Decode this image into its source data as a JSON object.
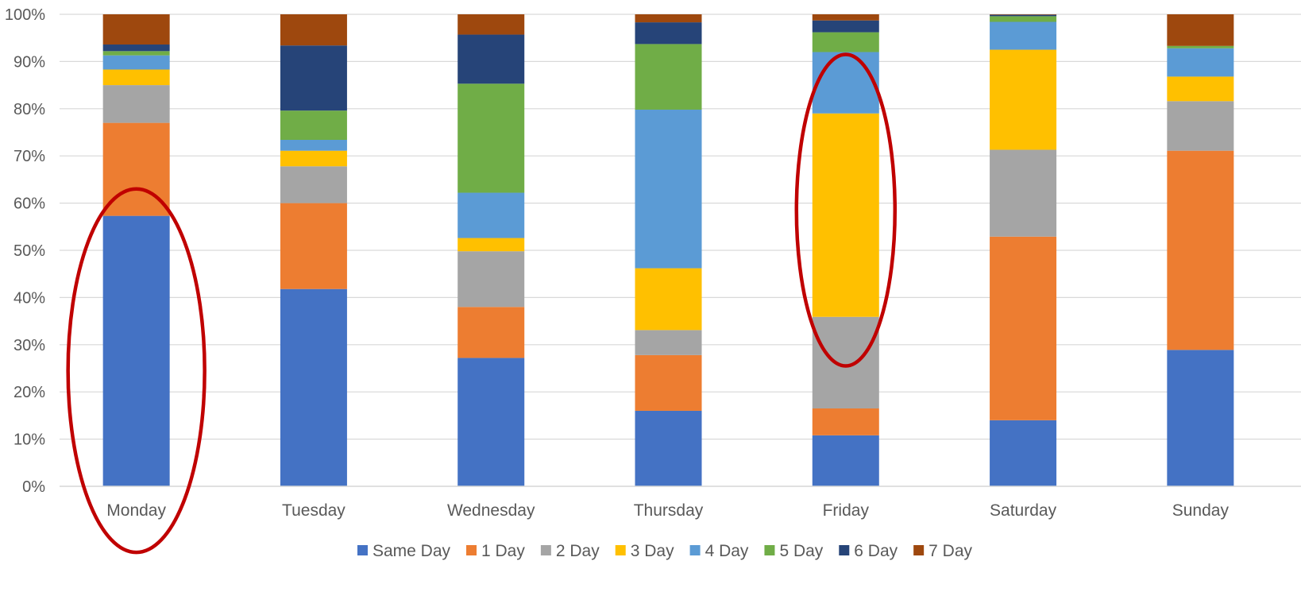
{
  "chart_data": {
    "type": "bar",
    "stacked": true,
    "normalized": true,
    "title": "",
    "xlabel": "",
    "ylabel": "",
    "ylim": [
      0,
      100
    ],
    "y_ticks": [
      "0%",
      "10%",
      "20%",
      "30%",
      "40%",
      "50%",
      "60%",
      "70%",
      "80%",
      "90%",
      "100%"
    ],
    "grid": true,
    "legend_position": "bottom",
    "categories": [
      "Monday",
      "Tuesday",
      "Wednesday",
      "Thursday",
      "Friday",
      "Saturday",
      "Sunday"
    ],
    "series": [
      {
        "name": "Same Day",
        "color": "#4472C4",
        "values": [
          57.3,
          41.8,
          27.2,
          16.0,
          10.8,
          14.0,
          28.9
        ]
      },
      {
        "name": "1 Day",
        "color": "#ED7D31",
        "values": [
          19.7,
          18.2,
          10.8,
          11.8,
          5.7,
          38.9,
          42.2
        ]
      },
      {
        "name": "2 Day",
        "color": "#A5A5A5",
        "values": [
          8.0,
          7.8,
          11.8,
          5.3,
          19.4,
          18.4,
          10.5
        ]
      },
      {
        "name": "3 Day",
        "color": "#FFC000",
        "values": [
          3.3,
          3.3,
          2.8,
          13.1,
          43.1,
          21.2,
          5.2
        ]
      },
      {
        "name": "4 Day",
        "color": "#5B9BD5",
        "values": [
          3.0,
          2.3,
          9.6,
          33.6,
          13.0,
          5.9,
          6.0
        ]
      },
      {
        "name": "5 Day",
        "color": "#70AD47",
        "values": [
          0.9,
          6.2,
          23.1,
          13.9,
          4.2,
          1.2,
          0.5
        ]
      },
      {
        "name": "6 Day",
        "color": "#264478",
        "values": [
          1.4,
          13.8,
          10.4,
          4.6,
          2.5,
          0.3,
          0.0
        ]
      },
      {
        "name": "7 Day",
        "color": "#9E480E",
        "values": [
          6.4,
          6.6,
          4.3,
          1.7,
          1.3,
          0.1,
          6.7
        ]
      }
    ],
    "annotations": [
      {
        "type": "ellipse",
        "color": "#C00000",
        "category": "Monday",
        "y_range": [
          -14,
          63
        ]
      },
      {
        "type": "ellipse",
        "color": "#C00000",
        "category": "Friday",
        "y_range": [
          25.5,
          91.5
        ]
      }
    ]
  }
}
